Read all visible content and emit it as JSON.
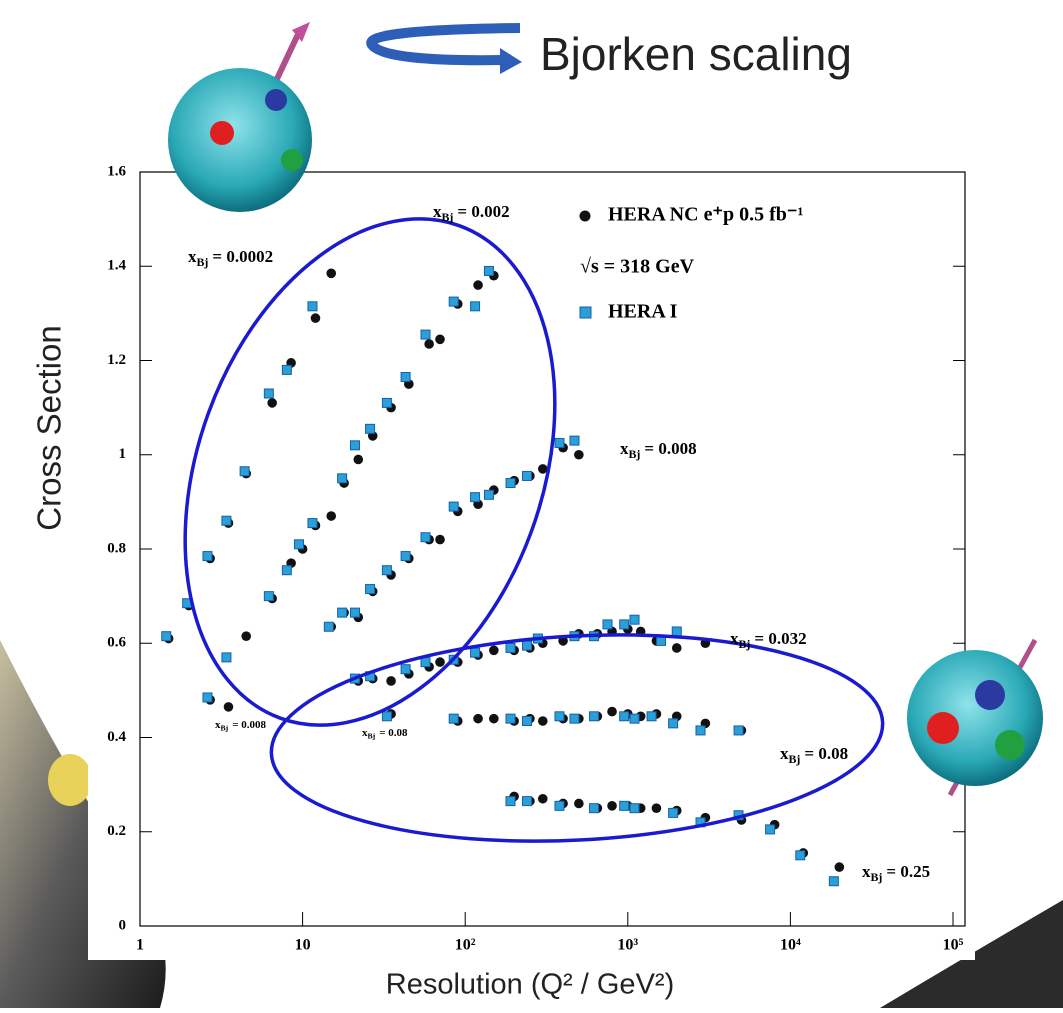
{
  "chart_data": {
    "type": "scatter",
    "title": "Bjorken scaling",
    "xlabel": "Resolution (Q² / GeV²)",
    "ylabel": "Cross Section",
    "xscale": "log",
    "xlim": [
      1,
      100000
    ],
    "ylim": [
      0,
      1.6
    ],
    "xticks": [
      1,
      10,
      {
        "value": 100,
        "label": "10²"
      },
      {
        "value": 1000,
        "label": "10³"
      },
      {
        "value": 10000,
        "label": "10⁴"
      },
      {
        "value": 100000,
        "label": "10⁵"
      }
    ],
    "yticks": [
      0,
      0.2,
      0.4,
      0.6,
      0.8,
      1,
      1.2,
      1.4,
      1.6
    ],
    "annotation_variable": "x",
    "annotation_subscript": "Bj",
    "annotations": [
      "= 0.0002",
      "= 0.002",
      "= 0.008",
      "= 0.032",
      "= 0.08",
      "= 0.25",
      "= 0.008",
      "= 0.08"
    ],
    "energy_note": "√s = 318 GeV",
    "series": [
      {
        "name": "HERA NC e⁺p 0.5 fb⁻¹",
        "color": "#111111",
        "marker": "circle",
        "x": [
          1.5,
          2,
          2.7,
          3.5,
          4.5,
          6.5,
          8.5,
          12,
          15,
          2.7,
          3.5,
          4.5,
          6.5,
          8.5,
          10,
          12,
          15,
          18,
          22,
          27,
          35,
          45,
          60,
          70,
          90,
          120,
          150,
          15,
          18,
          22,
          27,
          35,
          45,
          60,
          70,
          90,
          120,
          150,
          200,
          250,
          300,
          400,
          500,
          22,
          27,
          35,
          45,
          60,
          70,
          90,
          120,
          150,
          200,
          250,
          300,
          400,
          500,
          650,
          800,
          1000,
          1200,
          1500,
          2000,
          3000,
          35,
          90,
          120,
          150,
          200,
          250,
          300,
          400,
          500,
          650,
          800,
          1000,
          1200,
          1500,
          2000,
          3000,
          5000,
          200,
          250,
          300,
          400,
          500,
          650,
          800,
          1000,
          1200,
          1500,
          2000,
          3000,
          5000,
          8000,
          12000,
          20000
        ],
        "values": [
          0.61,
          0.68,
          0.78,
          0.855,
          0.96,
          1.11,
          1.195,
          1.29,
          1.385,
          0.48,
          0.465,
          0.615,
          0.695,
          0.77,
          0.8,
          0.85,
          0.87,
          0.94,
          0.99,
          1.04,
          1.1,
          1.15,
          1.235,
          1.245,
          1.32,
          1.36,
          1.38,
          0.635,
          0.665,
          0.655,
          0.71,
          0.745,
          0.78,
          0.82,
          0.82,
          0.88,
          0.895,
          0.925,
          0.945,
          0.955,
          0.97,
          1.015,
          1.0,
          0.52,
          0.525,
          0.52,
          0.535,
          0.55,
          0.56,
          0.56,
          0.575,
          0.585,
          0.585,
          0.59,
          0.6,
          0.605,
          0.62,
          0.62,
          0.625,
          0.63,
          0.625,
          0.605,
          0.59,
          0.6,
          0.45,
          0.435,
          0.44,
          0.44,
          0.435,
          0.44,
          0.435,
          0.44,
          0.44,
          0.445,
          0.455,
          0.45,
          0.445,
          0.45,
          0.445,
          0.43,
          0.415,
          0.275,
          0.265,
          0.27,
          0.26,
          0.26,
          0.25,
          0.255,
          0.255,
          0.25,
          0.25,
          0.245,
          0.23,
          0.225,
          0.215,
          0.155,
          0.125
        ]
      },
      {
        "name": "HERA I",
        "color": "#2a9fd8",
        "marker": "square",
        "x": [
          1.45,
          1.95,
          2.6,
          3.4,
          4.4,
          6.2,
          8,
          11.5,
          2.6,
          3.4,
          6.2,
          8,
          9.5,
          11.5,
          17.5,
          21,
          26,
          33,
          43,
          57,
          85,
          115,
          140,
          14.5,
          17.5,
          21,
          26,
          33,
          43,
          57,
          85,
          115,
          140,
          190,
          240,
          380,
          470,
          21,
          26,
          43,
          57,
          85,
          115,
          190,
          240,
          280,
          470,
          620,
          750,
          950,
          1100,
          1600,
          2000,
          33,
          85,
          190,
          240,
          380,
          470,
          620,
          950,
          1100,
          1400,
          1900,
          2800,
          4800,
          190,
          240,
          380,
          620,
          950,
          1100,
          1900,
          2800,
          4800,
          7500,
          11500,
          18500
        ],
        "values": [
          0.615,
          0.685,
          0.785,
          0.86,
          0.965,
          1.13,
          1.18,
          1.315,
          0.485,
          0.57,
          0.7,
          0.755,
          0.81,
          0.855,
          0.95,
          1.02,
          1.055,
          1.11,
          1.165,
          1.255,
          1.325,
          1.315,
          1.39,
          0.635,
          0.665,
          0.665,
          0.715,
          0.755,
          0.785,
          0.825,
          0.89,
          0.91,
          0.915,
          0.94,
          0.955,
          1.025,
          1.03,
          0.525,
          0.53,
          0.545,
          0.56,
          0.565,
          0.58,
          0.59,
          0.595,
          0.61,
          0.615,
          0.615,
          0.64,
          0.64,
          0.65,
          0.605,
          0.625,
          0.445,
          0.44,
          0.44,
          0.435,
          0.445,
          0.44,
          0.445,
          0.445,
          0.44,
          0.445,
          0.43,
          0.415,
          0.415,
          0.265,
          0.265,
          0.255,
          0.25,
          0.255,
          0.25,
          0.24,
          0.22,
          0.235,
          0.205,
          0.15,
          0.095
        ]
      }
    ]
  }
}
